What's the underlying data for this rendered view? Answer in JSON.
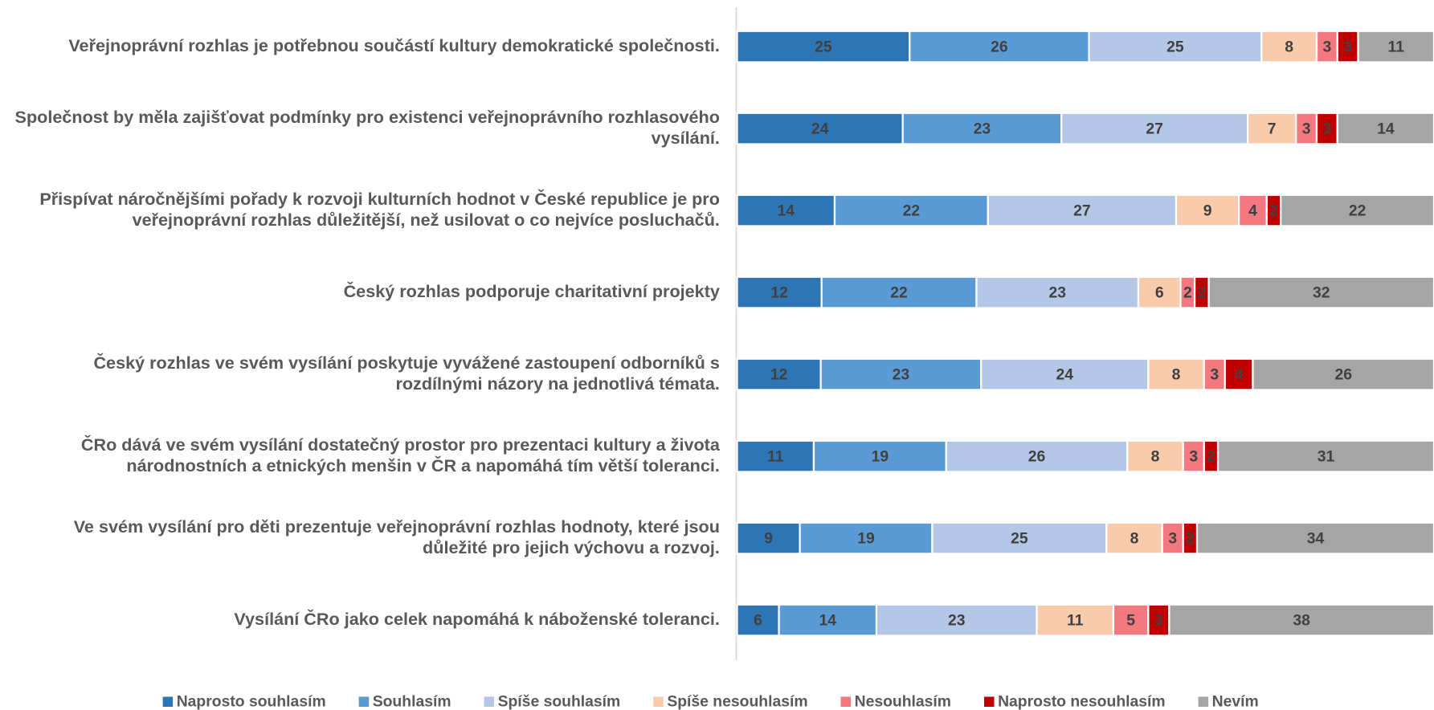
{
  "chart_data": {
    "type": "bar",
    "orientation": "horizontal",
    "stack": "percent",
    "categories": [
      "Veřejnoprávní rozhlas je potřebnou součástí kultury demokratické společnosti.",
      "Společnost by měla zajišťovat podmínky pro existenci veřejnoprávního rozhlasového vysílání.",
      "Přispívat náročnějšími pořady k rozvoji kulturních hodnot v České republice je pro veřejnoprávní rozhlas důležitější, než usilovat o co nejvíce posluchačů.",
      "Český rozhlas podporuje charitativní projekty",
      "Český rozhlas ve svém vysílání poskytuje vyvážené zastoupení odborníků s rozdílnými názory na jednotlivá témata.",
      "ČRo dává ve svém vysílání dostatečný prostor pro prezentaci kultury a života národnostních a etnických menšin v ČR a napomáhá tím větší toleranci.",
      "Ve svém vysílání pro děti prezentuje veřejnoprávní rozhlas hodnoty, které jsou důležité pro jejich výchovu a rozvoj.",
      "Vysílání ČRo jako celek napomáhá k náboženské toleranci."
    ],
    "series": [
      {
        "name": "Naprosto souhlasím",
        "color": "#2e75b6",
        "values": [
          25,
          24,
          14,
          12,
          12,
          11,
          9,
          6
        ]
      },
      {
        "name": "Souhlasím",
        "color": "#5b9bd5",
        "values": [
          26,
          23,
          22,
          22,
          23,
          19,
          19,
          14
        ]
      },
      {
        "name": "Spíše souhlasím",
        "color": "#b4c7e7",
        "values": [
          25,
          27,
          27,
          23,
          24,
          26,
          25,
          23
        ]
      },
      {
        "name": "Spíše nesouhlasím",
        "color": "#f8cbad",
        "values": [
          8,
          7,
          9,
          6,
          8,
          8,
          8,
          11
        ]
      },
      {
        "name": "Nesouhlasím",
        "color": "#f4787f",
        "values": [
          3,
          3,
          4,
          2,
          3,
          3,
          3,
          5
        ]
      },
      {
        "name": "Naprosto nesouhlasím",
        "color": "#c00000",
        "values": [
          3,
          3,
          2,
          2,
          4,
          2,
          2,
          3
        ]
      },
      {
        "name": "Nevím",
        "color": "#a5a5a5",
        "values": [
          11,
          14,
          22,
          32,
          26,
          31,
          34,
          38
        ]
      }
    ],
    "legend": "bottom"
  }
}
